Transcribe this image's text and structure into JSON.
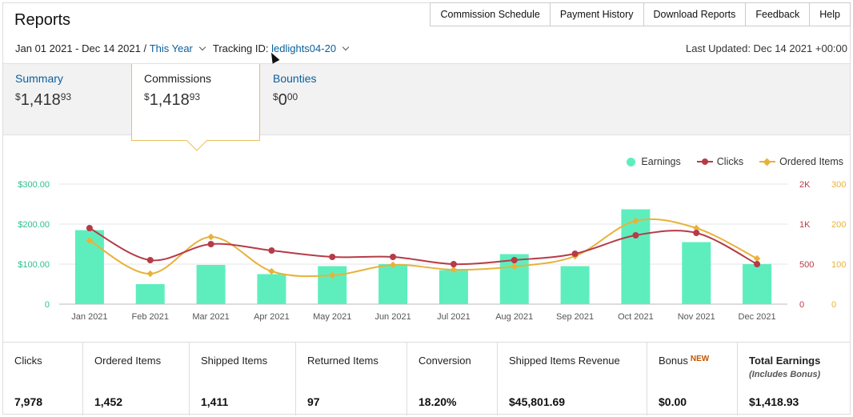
{
  "header": {
    "title": "Reports",
    "nav": [
      "Commission Schedule",
      "Payment History",
      "Download Reports",
      "Feedback",
      "Help"
    ]
  },
  "filter": {
    "date_range": "Jan 01 2021 - Dec 14 2021 /",
    "period": "This Year",
    "tracking_label": "Tracking ID:",
    "tracking_id": "ledlights04-20",
    "last_updated": "Last Updated: Dec 14 2021 +00:00"
  },
  "tabs": [
    {
      "label": "Summary",
      "dollars": "1,418",
      "cents": "93",
      "currency": "$"
    },
    {
      "label": "Commissions",
      "dollars": "1,418",
      "cents": "93",
      "currency": "$"
    },
    {
      "label": "Bounties",
      "dollars": "0",
      "cents": "00",
      "currency": "$"
    }
  ],
  "legend": {
    "earnings": "Earnings",
    "clicks": "Clicks",
    "ordered": "Ordered Items"
  },
  "colors": {
    "earnings": "#5eeebe",
    "clicks": "#b63b48",
    "ordered": "#e8b23a",
    "left_axis": "#2fbf8f",
    "link": "#0a5f9c"
  },
  "chart_data": {
    "type": "bar",
    "categories": [
      "Jan 2021",
      "Feb 2021",
      "Mar 2021",
      "Apr 2021",
      "May 2021",
      "Jun 2021",
      "Jul 2021",
      "Aug 2021",
      "Sep 2021",
      "Oct 2021",
      "Nov 2021",
      "Dec 2021"
    ],
    "series": [
      {
        "name": "Earnings",
        "type": "bar",
        "axis": "left",
        "values": [
          185,
          50,
          98,
          75,
          95,
          100,
          85,
          125,
          95,
          237,
          155,
          100
        ]
      },
      {
        "name": "Clicks",
        "type": "line",
        "axis": "right1",
        "values": [
          950,
          550,
          750,
          670,
          590,
          590,
          500,
          550,
          630,
          860,
          890,
          500
        ]
      },
      {
        "name": "Ordered Items",
        "type": "line",
        "axis": "right2",
        "values": [
          159,
          76,
          168,
          82,
          72,
          98,
          86,
          94,
          120,
          208,
          190,
          114
        ]
      }
    ],
    "left_axis": {
      "ticks": [
        "0",
        "$100.00",
        "$200.00",
        "$300.00"
      ],
      "range": [
        0,
        300
      ]
    },
    "right1_axis": {
      "ticks": [
        "0",
        "500",
        "1K",
        "2K"
      ]
    },
    "right2_axis": {
      "ticks": [
        "0",
        "100",
        "200",
        "300"
      ],
      "range": [
        0,
        300
      ]
    },
    "legend_position": "top-right",
    "grid": true
  },
  "stats": [
    {
      "label": "Clicks",
      "value": "7,978"
    },
    {
      "label": "Ordered Items",
      "value": "1,452"
    },
    {
      "label": "Shipped Items",
      "value": "1,411"
    },
    {
      "label": "Returned Items",
      "value": "97"
    },
    {
      "label": "Conversion",
      "value": "18.20%"
    },
    {
      "label": "Shipped Items Revenue",
      "value": "$45,801.69"
    },
    {
      "label": "Bonus",
      "badge": "NEW",
      "value": "$0.00"
    },
    {
      "label": "Total Earnings",
      "sub": "(Includes Bonus)",
      "value": "$1,418.93"
    }
  ]
}
